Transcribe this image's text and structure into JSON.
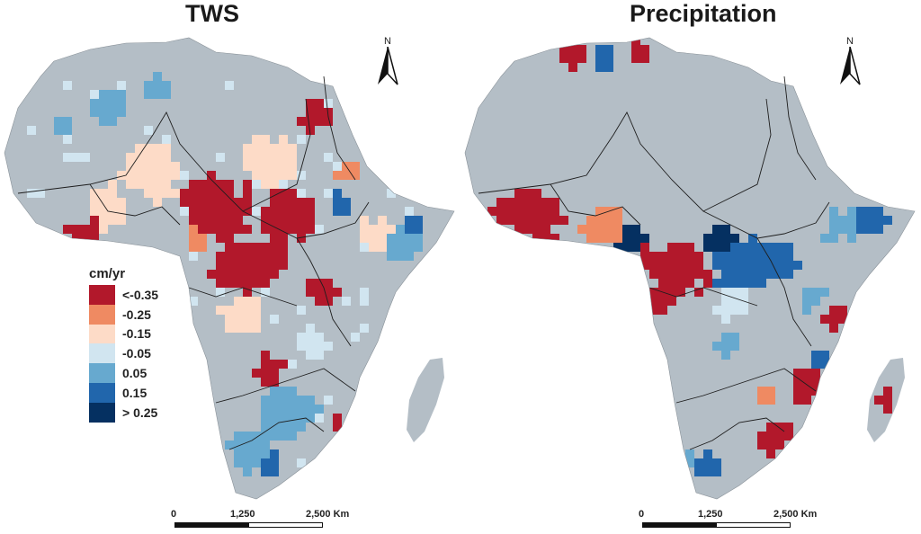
{
  "panels": [
    {
      "title": "TWS"
    },
    {
      "title": "Precipitation"
    }
  ],
  "legend": {
    "title": "cm/yr",
    "classes": [
      {
        "label": "<-0.35",
        "color": "#b2182b"
      },
      {
        "label": "-0.25",
        "color": "#ef8a62"
      },
      {
        "label": "-0.15",
        "color": "#fddbc7"
      },
      {
        "label": "-0.05",
        "color": "#d1e5f0"
      },
      {
        "label": "0.05",
        "color": "#67a9cf"
      },
      {
        "label": "0.15",
        "color": "#2166ac"
      },
      {
        "label": "> 0.25",
        "color": "#053061"
      }
    ]
  },
  "north_arrow": {
    "label": "N"
  },
  "scale_bar": {
    "labels": [
      "0",
      "1,250",
      "2,500 Km"
    ]
  },
  "colors": {
    "land": "#b4bec6",
    "border": "#1e1e1e"
  }
}
